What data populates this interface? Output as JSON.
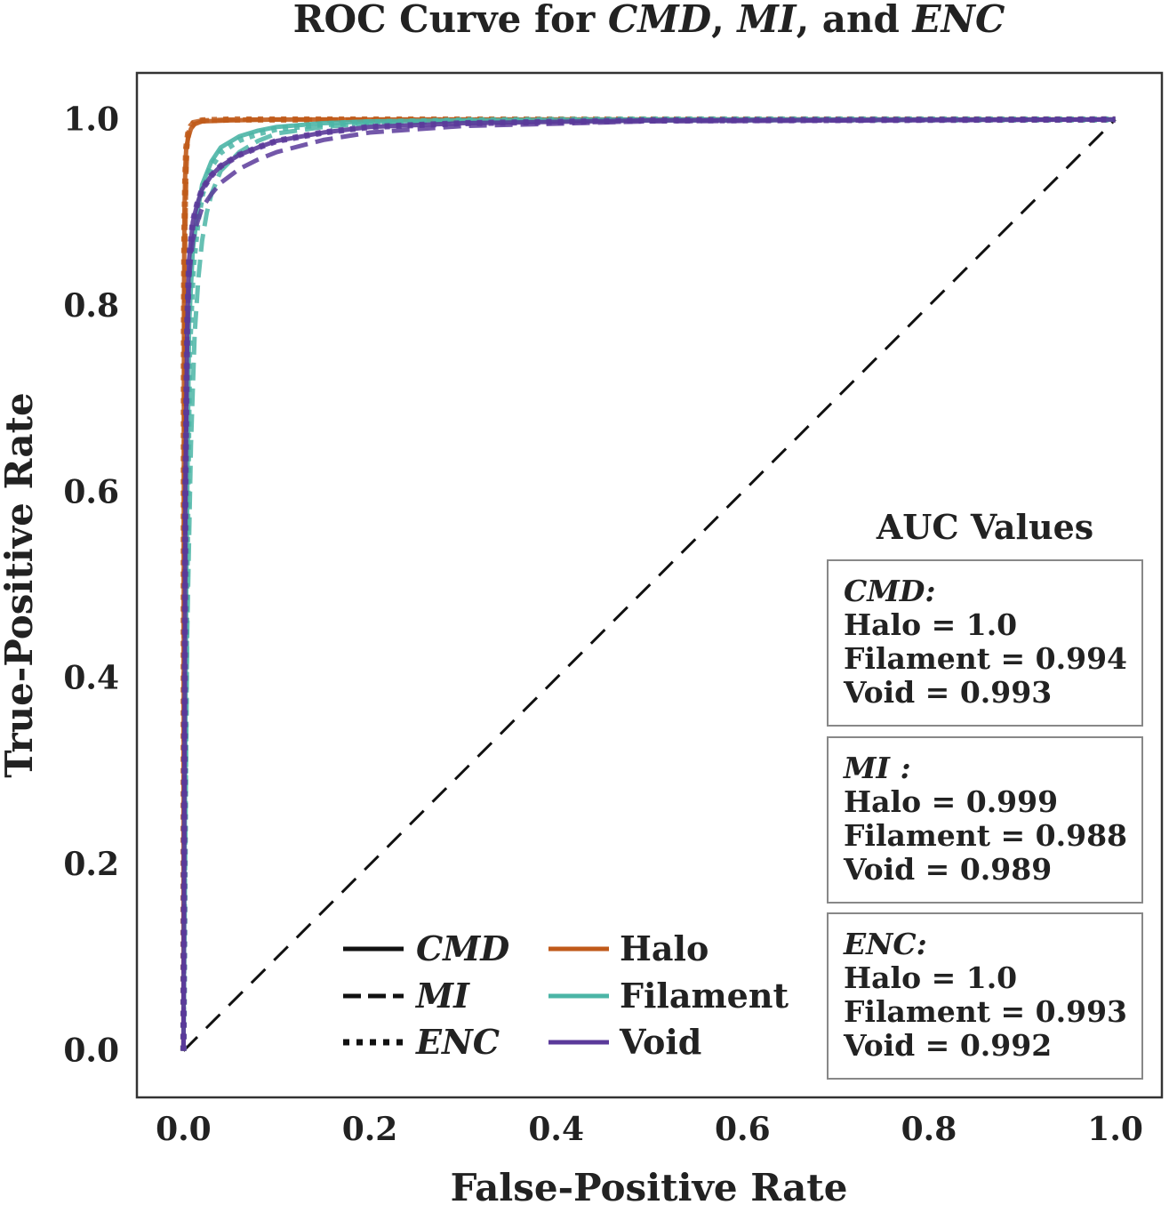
{
  "chart_data": {
    "type": "line",
    "title": {
      "prefix": "ROC Curve for ",
      "m1": "CMD",
      "sep1": ", ",
      "m2": "MI",
      "sep2": ", and ",
      "m3": "ENC"
    },
    "xlabel": "False-Positive Rate",
    "ylabel": "True-Positive Rate",
    "xlim": [
      -0.05,
      1.05
    ],
    "ylim": [
      -0.05,
      1.05
    ],
    "xticks": [
      "0.0",
      "0.2",
      "0.4",
      "0.6",
      "0.8",
      "1.0"
    ],
    "yticks": [
      "0.0",
      "0.2",
      "0.4",
      "0.6",
      "0.8",
      "1.0"
    ],
    "grid": false,
    "colors": {
      "Halo": "#c05a1a",
      "Filament": "#4bb5a6",
      "Void": "#5b3a9a",
      "diagonal": "#111111"
    },
    "legend": {
      "placement": "lower-center",
      "methods": [
        {
          "label": "CMD",
          "style": "solid"
        },
        {
          "label": "MI",
          "style": "dashed"
        },
        {
          "label": "ENC",
          "style": "dotted"
        }
      ],
      "classes": [
        {
          "label": "Halo",
          "color": "#c05a1a"
        },
        {
          "label": "Filament",
          "color": "#4bb5a6"
        },
        {
          "label": "Void",
          "color": "#5b3a9a"
        }
      ]
    },
    "auc_panel": {
      "title": "AUC Values",
      "boxes": [
        {
          "method": "CMD:",
          "lines": [
            "Halo = 1.0",
            "Filament = 0.994",
            "Void = 0.993"
          ]
        },
        {
          "method": "MI :",
          "lines": [
            "Halo = 0.999",
            "Filament = 0.988",
            "Void = 0.989"
          ]
        },
        {
          "method": "ENC:",
          "lines": [
            "Halo = 1.0",
            "Filament = 0.993",
            "Void = 0.992"
          ]
        }
      ]
    },
    "diagonal": {
      "x": [
        0,
        1
      ],
      "y": [
        0,
        1
      ],
      "style": "dashed"
    },
    "series": [
      {
        "method": "CMD",
        "class": "Halo",
        "style": "solid",
        "color": "#c05a1a",
        "x": [
          0,
          0.0005,
          0.001,
          0.002,
          0.003,
          0.005,
          0.008,
          0.012,
          0.02,
          0.05,
          0.1,
          0.3,
          0.6,
          1.0
        ],
        "y": [
          0,
          0.8,
          0.9,
          0.95,
          0.97,
          0.98,
          0.99,
          0.995,
          0.998,
          0.999,
          1.0,
          1.0,
          1.0,
          1.0
        ]
      },
      {
        "method": "MI",
        "class": "Halo",
        "style": "dashed",
        "color": "#c05a1a",
        "x": [
          0,
          0.0005,
          0.001,
          0.002,
          0.003,
          0.004,
          0.005,
          0.007,
          0.01,
          0.02,
          0.05,
          0.1,
          0.3,
          1.0
        ],
        "y": [
          0,
          0.7,
          0.8,
          0.88,
          0.94,
          0.97,
          0.985,
          0.993,
          0.997,
          0.999,
          1.0,
          1.0,
          1.0,
          1.0
        ]
      },
      {
        "method": "ENC",
        "class": "Halo",
        "style": "dotted",
        "color": "#c05a1a",
        "x": [
          0,
          0.0005,
          0.001,
          0.002,
          0.003,
          0.005,
          0.008,
          0.012,
          0.02,
          0.05,
          0.1,
          0.3,
          1.0
        ],
        "y": [
          0,
          0.78,
          0.88,
          0.94,
          0.97,
          0.985,
          0.993,
          0.997,
          0.999,
          1.0,
          1.0,
          1.0,
          1.0
        ]
      },
      {
        "method": "CMD",
        "class": "Filament",
        "style": "solid",
        "color": "#4bb5a6",
        "x": [
          0,
          0.003,
          0.006,
          0.01,
          0.015,
          0.02,
          0.03,
          0.04,
          0.06,
          0.08,
          0.1,
          0.15,
          0.2,
          0.3,
          0.5,
          1.0
        ],
        "y": [
          0,
          0.5,
          0.78,
          0.86,
          0.9,
          0.93,
          0.955,
          0.97,
          0.982,
          0.988,
          0.992,
          0.996,
          0.998,
          0.999,
          1.0,
          1.0
        ]
      },
      {
        "method": "MI",
        "class": "Filament",
        "style": "dashed",
        "color": "#4bb5a6",
        "x": [
          0,
          0.004,
          0.008,
          0.012,
          0.016,
          0.02,
          0.025,
          0.03,
          0.04,
          0.06,
          0.08,
          0.1,
          0.15,
          0.2,
          0.3,
          0.5,
          1.0
        ],
        "y": [
          0,
          0.45,
          0.65,
          0.77,
          0.83,
          0.87,
          0.9,
          0.92,
          0.945,
          0.965,
          0.977,
          0.985,
          0.992,
          0.996,
          0.998,
          0.999,
          1.0
        ]
      },
      {
        "method": "ENC",
        "class": "Filament",
        "style": "dotted",
        "color": "#4bb5a6",
        "x": [
          0,
          0.003,
          0.006,
          0.01,
          0.015,
          0.02,
          0.03,
          0.04,
          0.06,
          0.08,
          0.1,
          0.15,
          0.2,
          0.3,
          0.5,
          1.0
        ],
        "y": [
          0,
          0.48,
          0.75,
          0.84,
          0.89,
          0.92,
          0.95,
          0.965,
          0.978,
          0.985,
          0.99,
          0.995,
          0.997,
          0.999,
          1.0,
          1.0
        ]
      },
      {
        "method": "CMD",
        "class": "Void",
        "style": "solid",
        "color": "#5b3a9a",
        "x": [
          0,
          0.002,
          0.004,
          0.006,
          0.01,
          0.015,
          0.02,
          0.03,
          0.04,
          0.06,
          0.08,
          0.1,
          0.15,
          0.2,
          0.3,
          0.5,
          1.0
        ],
        "y": [
          0,
          0.6,
          0.78,
          0.85,
          0.89,
          0.91,
          0.925,
          0.94,
          0.95,
          0.962,
          0.97,
          0.977,
          0.986,
          0.992,
          0.996,
          0.999,
          1.0
        ]
      },
      {
        "method": "MI",
        "class": "Void",
        "style": "dashed",
        "color": "#5b3a9a",
        "x": [
          0,
          0.002,
          0.004,
          0.006,
          0.01,
          0.015,
          0.02,
          0.03,
          0.04,
          0.06,
          0.08,
          0.1,
          0.15,
          0.2,
          0.3,
          0.5,
          1.0
        ],
        "y": [
          0,
          0.58,
          0.76,
          0.83,
          0.87,
          0.89,
          0.905,
          0.92,
          0.932,
          0.947,
          0.957,
          0.965,
          0.978,
          0.986,
          0.993,
          0.998,
          1.0
        ]
      },
      {
        "method": "ENC",
        "class": "Void",
        "style": "dotted",
        "color": "#5b3a9a",
        "x": [
          0,
          0.002,
          0.004,
          0.006,
          0.01,
          0.015,
          0.02,
          0.03,
          0.04,
          0.06,
          0.08,
          0.1,
          0.15,
          0.2,
          0.3,
          0.5,
          1.0
        ],
        "y": [
          0,
          0.6,
          0.78,
          0.85,
          0.89,
          0.91,
          0.925,
          0.94,
          0.95,
          0.962,
          0.97,
          0.977,
          0.986,
          0.992,
          0.996,
          0.999,
          1.0
        ]
      }
    ]
  }
}
